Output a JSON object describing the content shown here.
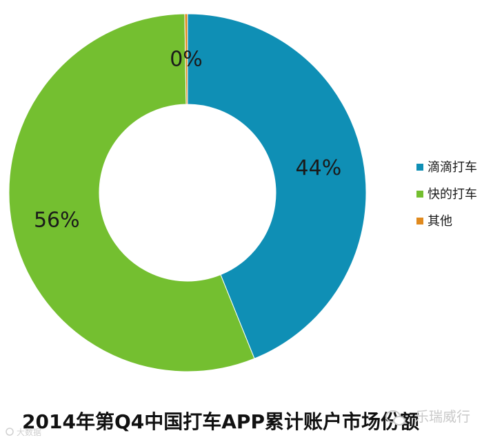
{
  "chart_data": {
    "type": "pie",
    "variant": "donut",
    "title": "2014年第Q4中国打车APP累计账户市场份额",
    "categories": [
      "滴滴打车",
      "快的打车",
      "其他"
    ],
    "values": [
      44,
      56,
      0
    ],
    "labels": [
      "44%",
      "56%",
      "0%"
    ],
    "colors": [
      "#0f8fb5",
      "#74bf30",
      "#e08a1e"
    ],
    "legend_position": "right"
  },
  "watermark": {
    "brand_text": "乐瑞威行",
    "corner_text": "大数据",
    "icon": "wechat-icon"
  }
}
